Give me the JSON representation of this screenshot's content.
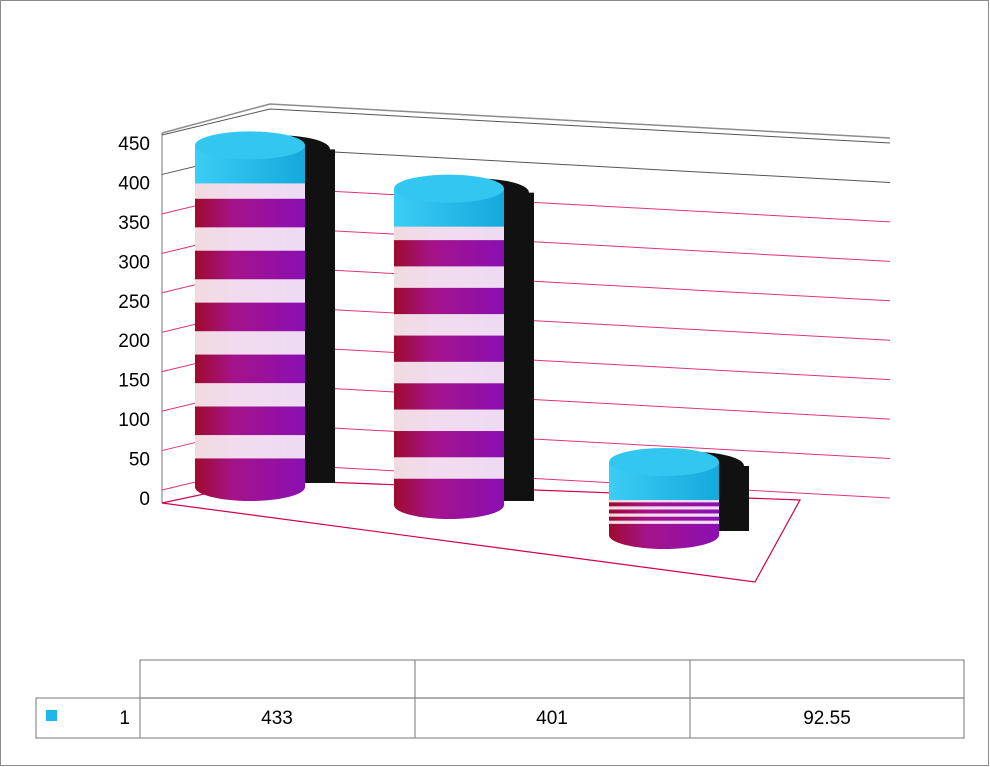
{
  "chart_data": {
    "type": "bar",
    "style": "3d-cylinder",
    "title": "",
    "xlabel": "",
    "ylabel": "",
    "ylim": [
      0,
      450
    ],
    "y_ticks": [
      "0",
      "50",
      "100",
      "150",
      "200",
      "250",
      "300",
      "350",
      "400",
      "450"
    ],
    "categories": [
      "",
      "",
      ""
    ],
    "series": [
      {
        "name": "1",
        "color": "#1fb6e8",
        "values": [
          433,
          401,
          92.55
        ]
      }
    ],
    "data_table": {
      "header": [
        "",
        "",
        ""
      ],
      "rows": [
        {
          "label": "1",
          "cells": [
            "433",
            "401",
            "92.55"
          ]
        }
      ]
    },
    "legend": "data-table",
    "grid": true
  }
}
